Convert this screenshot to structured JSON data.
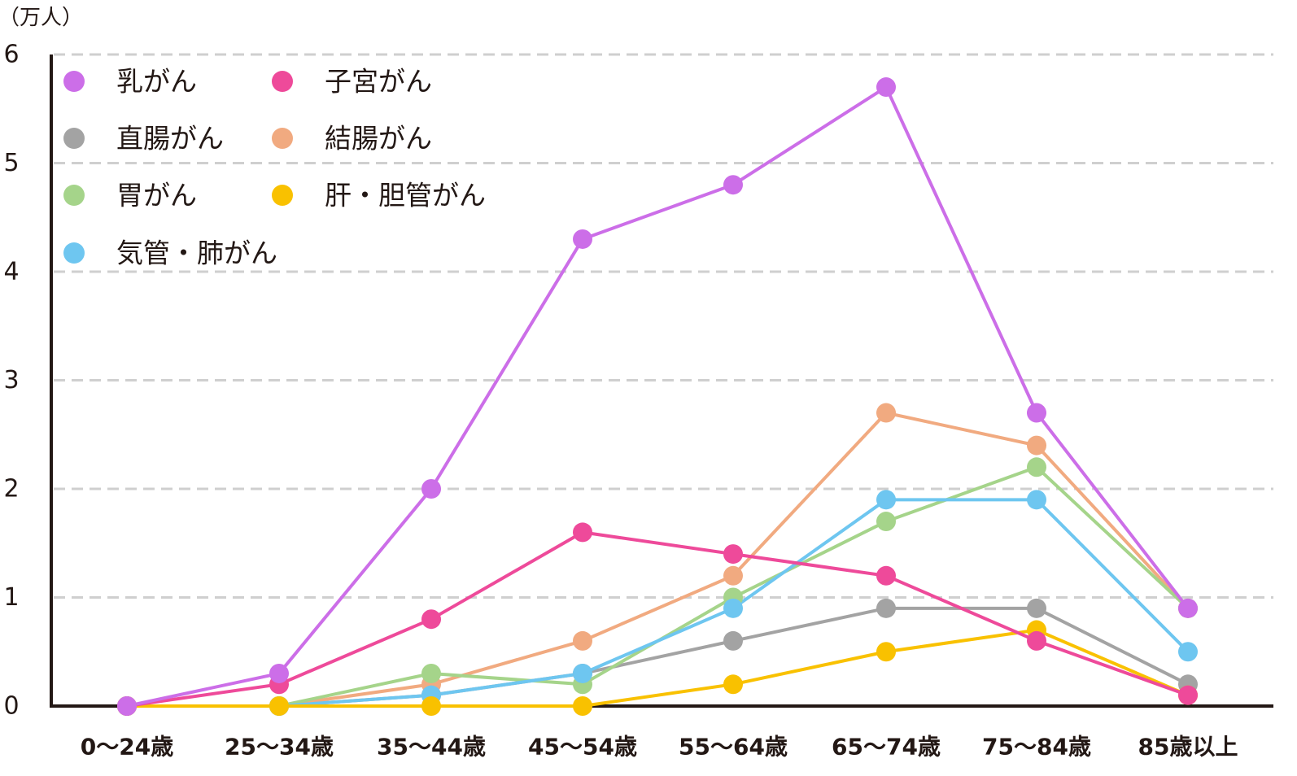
{
  "chart_data": {
    "type": "line",
    "title": "",
    "xlabel": "",
    "ylabel": "",
    "y_unit": "（万人）",
    "categories": [
      "0〜24歳",
      "25〜34歳",
      "35〜44歳",
      "45〜54歳",
      "55〜64歳",
      "65〜74歳",
      "75〜84歳",
      "85歳以上"
    ],
    "ylim": [
      0,
      6
    ],
    "y_ticks": [
      "0",
      "1",
      "2",
      "3",
      "4",
      "5",
      "6"
    ],
    "grid": true,
    "legend_position": "top-left",
    "series": [
      {
        "name": "乳がん",
        "color": "#CC6EE8",
        "values": [
          0,
          0.3,
          2.0,
          4.3,
          4.8,
          5.7,
          2.7,
          0.9
        ]
      },
      {
        "name": "子宮がん",
        "color": "#EE4A9A",
        "values": [
          0,
          0.2,
          0.8,
          1.6,
          1.4,
          1.2,
          0.6,
          0.1
        ]
      },
      {
        "name": "直腸がん",
        "color": "#A3A3A3",
        "values": [
          0,
          0,
          0.1,
          0.3,
          0.6,
          0.9,
          0.9,
          0.2
        ]
      },
      {
        "name": "結腸がん",
        "color": "#F1AA80",
        "values": [
          0,
          0,
          0.2,
          0.6,
          1.2,
          2.7,
          2.4,
          0.9
        ]
      },
      {
        "name": "胃がん",
        "color": "#A5D48A",
        "values": [
          0,
          0,
          0.3,
          0.2,
          1.0,
          1.7,
          2.2,
          0.9
        ]
      },
      {
        "name": "肝・胆管がん",
        "color": "#F9C100",
        "values": [
          0,
          0,
          0,
          0,
          0.2,
          0.5,
          0.7,
          0.1
        ]
      },
      {
        "name": "気管・肺がん",
        "color": "#6EC6F0",
        "values": [
          0,
          0,
          0.1,
          0.3,
          0.9,
          1.9,
          1.9,
          0.5
        ]
      }
    ]
  }
}
